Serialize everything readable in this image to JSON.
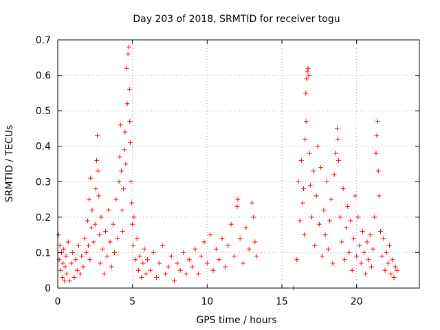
{
  "chart_data": {
    "type": "scatter",
    "title": "Day 203 of 2018, SRMTID for receiver togu",
    "xlabel": "GPS time / hours",
    "ylabel": "SRMTID / TECUs",
    "xlim": [
      0,
      24.2
    ],
    "ylim": [
      0,
      0.7
    ],
    "x_ticks": [
      0,
      5,
      10,
      15,
      20
    ],
    "x_tick_labels": [
      "0",
      "5",
      "10",
      "15",
      "20"
    ],
    "y_ticks": [
      0,
      0.1,
      0.2,
      0.3,
      0.4,
      0.5,
      0.6,
      0.7
    ],
    "y_tick_labels": [
      "0",
      "0.1",
      "0.2",
      "0.3",
      "0.4",
      "0.5",
      "0.6",
      "0.7"
    ],
    "grid": true,
    "marker": "plus",
    "series": [
      {
        "name": "SRMTID",
        "color": "#ff0000",
        "points": [
          [
            0.05,
            0.15
          ],
          [
            0.1,
            0.08
          ],
          [
            0.15,
            0.12
          ],
          [
            0.2,
            0.05
          ],
          [
            0.25,
            0.1
          ],
          [
            0.3,
            0.03
          ],
          [
            0.35,
            0.07
          ],
          [
            0.4,
            0.11
          ],
          [
            0.45,
            0.02
          ],
          [
            0.5,
            0.06
          ],
          [
            0.55,
            0.09
          ],
          [
            0.6,
            0.04
          ],
          [
            0.7,
            0.13
          ],
          [
            0.8,
            0.02
          ],
          [
            0.9,
            0.07
          ],
          [
            1.0,
            0.1
          ],
          [
            1.1,
            0.03
          ],
          [
            1.2,
            0.08
          ],
          [
            1.3,
            0.05
          ],
          [
            1.4,
            0.12
          ],
          [
            1.5,
            0.04
          ],
          [
            1.6,
            0.09
          ],
          [
            1.7,
            0.06
          ],
          [
            1.8,
            0.14
          ],
          [
            1.9,
            0.1
          ],
          [
            2.0,
            0.19
          ],
          [
            2.05,
            0.12
          ],
          [
            2.1,
            0.25
          ],
          [
            2.15,
            0.08
          ],
          [
            2.2,
            0.31
          ],
          [
            2.25,
            0.17
          ],
          [
            2.3,
            0.22
          ],
          [
            2.4,
            0.13
          ],
          [
            2.5,
            0.18
          ],
          [
            2.55,
            0.28
          ],
          [
            2.6,
            0.36
          ],
          [
            2.65,
            0.43
          ],
          [
            2.7,
            0.33
          ],
          [
            2.75,
            0.26
          ],
          [
            2.8,
            0.15
          ],
          [
            2.85,
            0.07
          ],
          [
            2.9,
            0.2
          ],
          [
            3.0,
            0.11
          ],
          [
            3.1,
            0.04
          ],
          [
            3.2,
            0.16
          ],
          [
            3.3,
            0.09
          ],
          [
            3.4,
            0.22
          ],
          [
            3.5,
            0.13
          ],
          [
            3.6,
            0.06
          ],
          [
            3.7,
            0.18
          ],
          [
            3.8,
            0.1
          ],
          [
            3.9,
            0.25
          ],
          [
            4.0,
            0.14
          ],
          [
            4.1,
            0.3
          ],
          [
            4.15,
            0.37
          ],
          [
            4.2,
            0.46
          ],
          [
            4.25,
            0.33
          ],
          [
            4.3,
            0.22
          ],
          [
            4.35,
            0.16
          ],
          [
            4.4,
            0.28
          ],
          [
            4.45,
            0.39
          ],
          [
            4.5,
            0.44
          ],
          [
            4.55,
            0.35
          ],
          [
            4.6,
            0.62
          ],
          [
            4.65,
            0.52
          ],
          [
            4.7,
            0.66
          ],
          [
            4.75,
            0.68
          ],
          [
            4.8,
            0.56
          ],
          [
            4.82,
            0.47
          ],
          [
            4.85,
            0.41
          ],
          [
            4.9,
            0.3
          ],
          [
            4.95,
            0.24
          ],
          [
            5.0,
            0.18
          ],
          [
            5.05,
            0.12
          ],
          [
            5.1,
            0.2
          ],
          [
            5.2,
            0.08
          ],
          [
            5.3,
            0.14
          ],
          [
            5.4,
            0.05
          ],
          [
            5.5,
            0.09
          ],
          [
            5.6,
            0.03
          ],
          [
            5.7,
            0.07
          ],
          [
            5.8,
            0.11
          ],
          [
            5.9,
            0.04
          ],
          [
            6.0,
            0.08
          ],
          [
            6.2,
            0.05
          ],
          [
            6.4,
            0.1
          ],
          [
            6.6,
            0.03
          ],
          [
            6.8,
            0.07
          ],
          [
            7.0,
            0.12
          ],
          [
            7.2,
            0.04
          ],
          [
            7.4,
            0.06
          ],
          [
            7.6,
            0.09
          ],
          [
            7.8,
            0.02
          ],
          [
            8.0,
            0.07
          ],
          [
            8.2,
            0.05
          ],
          [
            8.4,
            0.1
          ],
          [
            8.6,
            0.04
          ],
          [
            8.8,
            0.08
          ],
          [
            9.0,
            0.06
          ],
          [
            9.2,
            0.11
          ],
          [
            9.4,
            0.04
          ],
          [
            9.6,
            0.09
          ],
          [
            9.8,
            0.13
          ],
          [
            10.0,
            0.07
          ],
          [
            10.2,
            0.15
          ],
          [
            10.4,
            0.05
          ],
          [
            10.6,
            0.11
          ],
          [
            10.8,
            0.08
          ],
          [
            11.0,
            0.14
          ],
          [
            11.2,
            0.06
          ],
          [
            11.4,
            0.12
          ],
          [
            11.6,
            0.18
          ],
          [
            11.8,
            0.09
          ],
          [
            12.0,
            0.23
          ],
          [
            12.05,
            0.25
          ],
          [
            12.2,
            0.14
          ],
          [
            12.4,
            0.07
          ],
          [
            12.6,
            0.17
          ],
          [
            12.8,
            0.11
          ],
          [
            13.0,
            0.24
          ],
          [
            13.1,
            0.2
          ],
          [
            13.2,
            0.13
          ],
          [
            13.3,
            0.09
          ],
          [
            15.8,
            0.0
          ],
          [
            16.0,
            0.08
          ],
          [
            16.1,
            0.3
          ],
          [
            16.2,
            0.19
          ],
          [
            16.3,
            0.36
          ],
          [
            16.4,
            0.24
          ],
          [
            16.45,
            0.28
          ],
          [
            16.5,
            0.15
          ],
          [
            16.55,
            0.42
          ],
          [
            16.6,
            0.55
          ],
          [
            16.62,
            0.47
          ],
          [
            16.65,
            0.59
          ],
          [
            16.7,
            0.61
          ],
          [
            16.75,
            0.62
          ],
          [
            16.8,
            0.6
          ],
          [
            16.85,
            0.38
          ],
          [
            16.9,
            0.29
          ],
          [
            17.0,
            0.2
          ],
          [
            17.1,
            0.33
          ],
          [
            17.2,
            0.12
          ],
          [
            17.3,
            0.26
          ],
          [
            17.4,
            0.4
          ],
          [
            17.5,
            0.18
          ],
          [
            17.6,
            0.34
          ],
          [
            17.7,
            0.09
          ],
          [
            17.8,
            0.22
          ],
          [
            17.9,
            0.15
          ],
          [
            18.0,
            0.3
          ],
          [
            18.1,
            0.11
          ],
          [
            18.2,
            0.19
          ],
          [
            18.3,
            0.25
          ],
          [
            18.4,
            0.07
          ],
          [
            18.5,
            0.32
          ],
          [
            18.6,
            0.38
          ],
          [
            18.7,
            0.45
          ],
          [
            18.75,
            0.42
          ],
          [
            18.8,
            0.36
          ],
          [
            18.9,
            0.2
          ],
          [
            19.0,
            0.13
          ],
          [
            19.1,
            0.28
          ],
          [
            19.2,
            0.08
          ],
          [
            19.3,
            0.17
          ],
          [
            19.4,
            0.23
          ],
          [
            19.5,
            0.1
          ],
          [
            19.6,
            0.19
          ],
          [
            19.7,
            0.05
          ],
          [
            19.8,
            0.14
          ],
          [
            19.9,
            0.26
          ],
          [
            20.0,
            0.09
          ],
          [
            20.1,
            0.2
          ],
          [
            20.2,
            0.12
          ],
          [
            20.3,
            0.07
          ],
          [
            20.4,
            0.16
          ],
          [
            20.5,
            0.1
          ],
          [
            20.6,
            0.04
          ],
          [
            20.7,
            0.13
          ],
          [
            20.8,
            0.08
          ],
          [
            20.9,
            0.15
          ],
          [
            21.0,
            0.06
          ],
          [
            21.1,
            0.11
          ],
          [
            21.2,
            0.2
          ],
          [
            21.3,
            0.38
          ],
          [
            21.35,
            0.43
          ],
          [
            21.4,
            0.47
          ],
          [
            21.45,
            0.33
          ],
          [
            21.5,
            0.26
          ],
          [
            21.6,
            0.16
          ],
          [
            21.7,
            0.09
          ],
          [
            21.8,
            0.14
          ],
          [
            21.9,
            0.05
          ],
          [
            22.0,
            0.1
          ],
          [
            22.1,
            0.07
          ],
          [
            22.2,
            0.12
          ],
          [
            22.3,
            0.04
          ],
          [
            22.4,
            0.08
          ],
          [
            22.5,
            0.03
          ],
          [
            22.6,
            0.06
          ],
          [
            22.7,
            0.05
          ]
        ]
      }
    ]
  }
}
